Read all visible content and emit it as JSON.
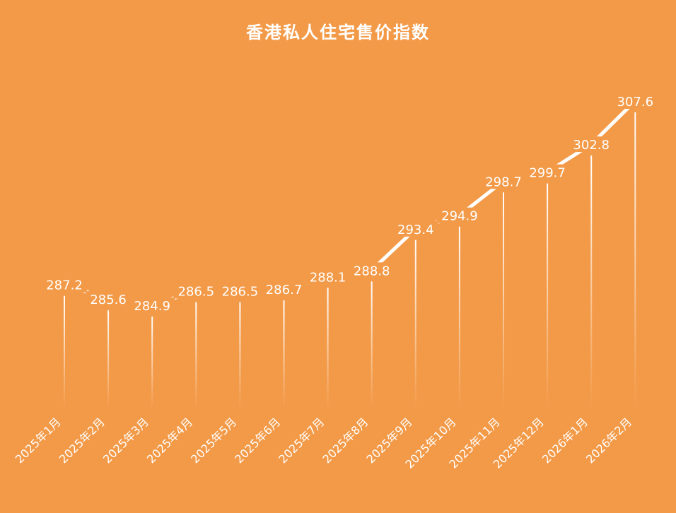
{
  "chart_data": {
    "type": "line",
    "title": "香港私人住宅售价指数",
    "xlabel": "",
    "ylabel": "",
    "grid": false,
    "colors": {
      "background": "#F39A48",
      "line": "#FFFFFF",
      "text": "#FFFFFF"
    },
    "categories": [
      "2025年1月",
      "2025年2月",
      "2025年3月",
      "2025年4月",
      "2025年5月",
      "2025年6月",
      "2025年7月",
      "2025年8月",
      "2025年9月",
      "2025年10月",
      "2025年11月",
      "2025年12月",
      "2026年1月",
      "2026年2月"
    ],
    "series": [
      {
        "values": [
          287.2,
          285.6,
          284.9,
          286.5,
          286.5,
          286.7,
          288.1,
          288.8,
          293.4,
          294.9,
          298.7,
          299.7,
          302.8,
          307.6
        ],
        "value_labels": [
          "287.2",
          "285.6",
          "284.9",
          "286.5",
          "286.5",
          "286.7",
          "288.1",
          "288.8",
          "293.4",
          "294.9",
          "298.7",
          "299.7",
          "302.8",
          "307.6"
        ]
      }
    ]
  }
}
